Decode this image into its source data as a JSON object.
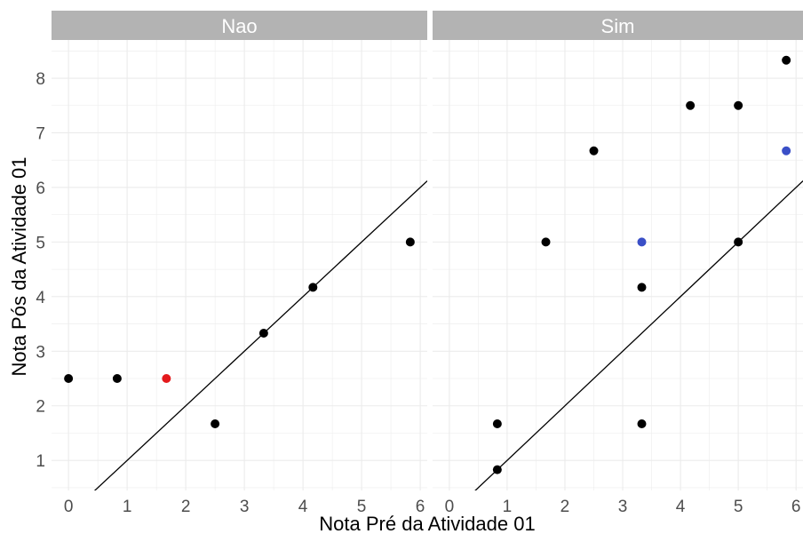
{
  "chart_data": {
    "type": "scatter",
    "xlabel": "Nota Pré da Atividade 01",
    "ylabel": "Nota Pós da Atividade 01",
    "xlim": [
      -0.29,
      6.12
    ],
    "ylim": [
      0.45,
      8.7
    ],
    "x_ticks": [
      "0",
      "1",
      "2",
      "3",
      "4",
      "5",
      "6"
    ],
    "y_ticks": [
      "1",
      "2",
      "3",
      "4",
      "5",
      "6",
      "7",
      "8"
    ],
    "grid": true,
    "reference_line": {
      "slope": 1,
      "intercept": 0
    },
    "colors": {
      "black": "#000000",
      "red": "#e41a1c",
      "blue": "#3a4fc7",
      "strip_bg": "#b3b3b3",
      "grid": "#ebebeb"
    },
    "panels": [
      {
        "label": "Nao",
        "points": [
          {
            "x": 0,
            "y": 2.5,
            "color": "black"
          },
          {
            "x": 0.83,
            "y": 2.5,
            "color": "black"
          },
          {
            "x": 1.67,
            "y": 2.5,
            "color": "red"
          },
          {
            "x": 2.5,
            "y": 1.67,
            "color": "black"
          },
          {
            "x": 3.33,
            "y": 3.33,
            "color": "black"
          },
          {
            "x": 4.17,
            "y": 4.17,
            "color": "black"
          },
          {
            "x": 5.83,
            "y": 5.0,
            "color": "black"
          }
        ]
      },
      {
        "label": "Sim",
        "points": [
          {
            "x": 0.83,
            "y": 0.83,
            "color": "black"
          },
          {
            "x": 0.83,
            "y": 1.67,
            "color": "black"
          },
          {
            "x": 1.67,
            "y": 5.0,
            "color": "black"
          },
          {
            "x": 2.5,
            "y": 6.67,
            "color": "black"
          },
          {
            "x": 3.33,
            "y": 5.0,
            "color": "blue"
          },
          {
            "x": 3.33,
            "y": 4.17,
            "color": "black"
          },
          {
            "x": 3.33,
            "y": 1.67,
            "color": "black"
          },
          {
            "x": 4.17,
            "y": 7.5,
            "color": "black"
          },
          {
            "x": 5.0,
            "y": 7.5,
            "color": "black"
          },
          {
            "x": 5.0,
            "y": 5.0,
            "color": "black"
          },
          {
            "x": 5.83,
            "y": 8.33,
            "color": "black"
          },
          {
            "x": 5.83,
            "y": 6.67,
            "color": "blue"
          }
        ]
      }
    ]
  }
}
